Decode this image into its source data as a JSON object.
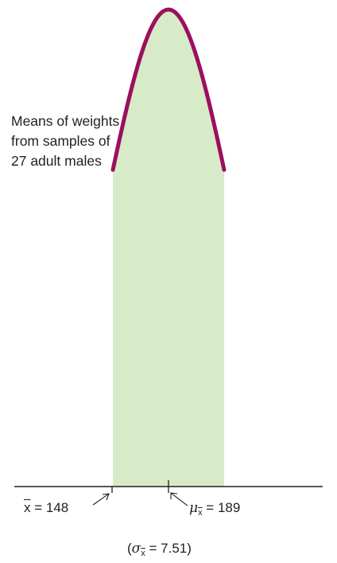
{
  "curve_label": {
    "line1": "Means of weights",
    "line2": "from samples of",
    "line3": "27 adult males"
  },
  "sample_mean": {
    "symbol": "x",
    "eq": "= 148",
    "value": 148
  },
  "population_mean": {
    "symbol": "μ",
    "sub": "x",
    "eq": "= 189",
    "value": 189
  },
  "std_error": {
    "open": "(",
    "symbol": "σ",
    "sub": "x",
    "eq": "= 7.51)",
    "value": 7.51
  },
  "colors": {
    "curve": "#9c0f5f",
    "fill": "#d7ebc8",
    "axis": "#231f20",
    "text": "#231f20"
  }
}
